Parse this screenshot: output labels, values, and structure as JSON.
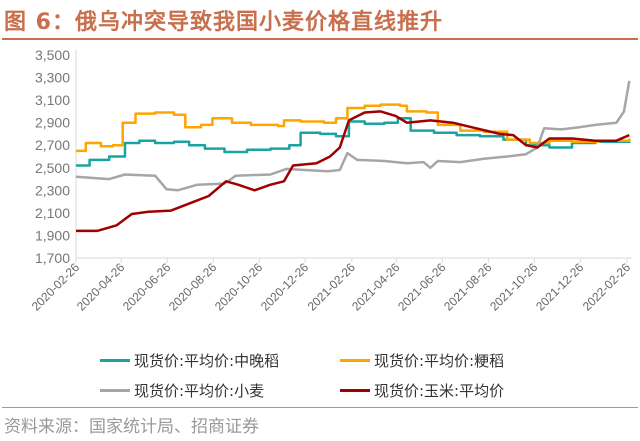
{
  "chart_data": {
    "type": "line",
    "title": "图 6：俄乌冲突导致我国小麦价格直线推升",
    "source": "资料来源：国家统计局、招商证券",
    "ylim": [
      1700,
      3500
    ],
    "yticks": [
      "1,700",
      "1,900",
      "2,100",
      "2,300",
      "2,500",
      "2,700",
      "2,900",
      "3,100",
      "3,300",
      "3,500"
    ],
    "xticks": [
      "2020-02-26",
      "2020-04-26",
      "2020-06-26",
      "2020-08-26",
      "2020-10-26",
      "2020-12-26",
      "2021-02-26",
      "2021-04-26",
      "2021-06-26",
      "2021-08-26",
      "2021-10-26",
      "2021-12-26",
      "2022-02-26"
    ],
    "xlim": [
      "2020-02-26",
      "2022-03-05"
    ],
    "grid": false,
    "legend_position": "bottom",
    "series": [
      {
        "name": "现货价:平均价:中晚稻",
        "color": "#1aa3a3",
        "points": [
          [
            "2020-02-26",
            2520
          ],
          [
            "2020-03-15",
            2570
          ],
          [
            "2020-04-10",
            2600
          ],
          [
            "2020-05-01",
            2720
          ],
          [
            "2020-05-20",
            2740
          ],
          [
            "2020-06-10",
            2720
          ],
          [
            "2020-07-05",
            2730
          ],
          [
            "2020-07-25",
            2700
          ],
          [
            "2020-08-15",
            2670
          ],
          [
            "2020-09-10",
            2640
          ],
          [
            "2020-10-10",
            2660
          ],
          [
            "2020-11-10",
            2670
          ],
          [
            "2020-12-05",
            2700
          ],
          [
            "2020-12-20",
            2810
          ],
          [
            "2021-01-15",
            2800
          ],
          [
            "2021-02-05",
            2780
          ],
          [
            "2021-02-22",
            2910
          ],
          [
            "2021-03-15",
            2890
          ],
          [
            "2021-04-10",
            2900
          ],
          [
            "2021-04-28",
            2940
          ],
          [
            "2021-05-15",
            2830
          ],
          [
            "2021-06-15",
            2810
          ],
          [
            "2021-07-15",
            2790
          ],
          [
            "2021-08-15",
            2780
          ],
          [
            "2021-09-15",
            2750
          ],
          [
            "2021-10-15",
            2700
          ],
          [
            "2021-11-15",
            2680
          ],
          [
            "2021-12-15",
            2720
          ],
          [
            "2022-01-15",
            2730
          ],
          [
            "2022-03-01",
            2720
          ]
        ]
      },
      {
        "name": "现货价:平均价:粳稻",
        "color": "#ffa500",
        "points": [
          [
            "2020-02-26",
            2650
          ],
          [
            "2020-03-10",
            2720
          ],
          [
            "2020-03-30",
            2690
          ],
          [
            "2020-04-15",
            2700
          ],
          [
            "2020-04-28",
            2900
          ],
          [
            "2020-05-15",
            2980
          ],
          [
            "2020-06-10",
            2990
          ],
          [
            "2020-07-05",
            2970
          ],
          [
            "2020-07-20",
            2860
          ],
          [
            "2020-08-10",
            2880
          ],
          [
            "2020-08-25",
            2940
          ],
          [
            "2020-09-20",
            2900
          ],
          [
            "2020-10-15",
            2880
          ],
          [
            "2020-11-20",
            2870
          ],
          [
            "2020-11-28",
            2920
          ],
          [
            "2020-12-20",
            2910
          ],
          [
            "2021-01-20",
            2900
          ],
          [
            "2021-02-05",
            2940
          ],
          [
            "2021-02-20",
            3030
          ],
          [
            "2021-03-15",
            3050
          ],
          [
            "2021-04-05",
            3060
          ],
          [
            "2021-05-01",
            3050
          ],
          [
            "2021-05-10",
            3000
          ],
          [
            "2021-06-05",
            2990
          ],
          [
            "2021-06-20",
            2880
          ],
          [
            "2021-07-20",
            2830
          ],
          [
            "2021-08-20",
            2820
          ],
          [
            "2021-09-20",
            2750
          ],
          [
            "2021-10-20",
            2720
          ],
          [
            "2021-11-15",
            2740
          ],
          [
            "2021-12-15",
            2730
          ],
          [
            "2022-01-20",
            2740
          ],
          [
            "2022-03-01",
            2760
          ]
        ]
      },
      {
        "name": "现货价:平均价:小麦",
        "color": "#a6a6a6",
        "points": [
          [
            "2020-02-26",
            2420
          ],
          [
            "2020-04-10",
            2400
          ],
          [
            "2020-05-01",
            2440
          ],
          [
            "2020-06-10",
            2430
          ],
          [
            "2020-06-25",
            2310
          ],
          [
            "2020-07-10",
            2300
          ],
          [
            "2020-08-05",
            2350
          ],
          [
            "2020-09-10",
            2360
          ],
          [
            "2020-09-25",
            2430
          ],
          [
            "2020-11-10",
            2440
          ],
          [
            "2020-12-01",
            2490
          ],
          [
            "2020-12-25",
            2480
          ],
          [
            "2021-01-25",
            2470
          ],
          [
            "2021-02-10",
            2480
          ],
          [
            "2021-02-20",
            2630
          ],
          [
            "2021-03-05",
            2570
          ],
          [
            "2021-04-10",
            2560
          ],
          [
            "2021-05-10",
            2540
          ],
          [
            "2021-06-01",
            2550
          ],
          [
            "2021-06-10",
            2500
          ],
          [
            "2021-06-20",
            2560
          ],
          [
            "2021-07-20",
            2550
          ],
          [
            "2021-08-20",
            2580
          ],
          [
            "2021-09-20",
            2600
          ],
          [
            "2021-10-15",
            2620
          ],
          [
            "2021-10-30",
            2680
          ],
          [
            "2021-11-08",
            2850
          ],
          [
            "2021-12-01",
            2840
          ],
          [
            "2021-12-25",
            2860
          ],
          [
            "2022-01-15",
            2880
          ],
          [
            "2022-02-12",
            2900
          ],
          [
            "2022-02-22",
            3000
          ],
          [
            "2022-03-01",
            3270
          ]
        ]
      },
      {
        "name": "现货价:玉米:平均价",
        "color": "#a00000",
        "points": [
          [
            "2020-02-26",
            1940
          ],
          [
            "2020-03-25",
            1940
          ],
          [
            "2020-04-20",
            1990
          ],
          [
            "2020-05-10",
            2090
          ],
          [
            "2020-06-01",
            2110
          ],
          [
            "2020-07-01",
            2120
          ],
          [
            "2020-08-01",
            2200
          ],
          [
            "2020-08-20",
            2250
          ],
          [
            "2020-09-12",
            2380
          ],
          [
            "2020-09-28",
            2350
          ],
          [
            "2020-10-20",
            2300
          ],
          [
            "2020-11-10",
            2350
          ],
          [
            "2020-11-28",
            2380
          ],
          [
            "2020-12-10",
            2520
          ],
          [
            "2021-01-10",
            2540
          ],
          [
            "2021-01-28",
            2600
          ],
          [
            "2021-02-10",
            2680
          ],
          [
            "2021-02-22",
            2920
          ],
          [
            "2021-03-15",
            2990
          ],
          [
            "2021-04-05",
            3000
          ],
          [
            "2021-04-25",
            2960
          ],
          [
            "2021-05-10",
            2900
          ],
          [
            "2021-06-10",
            2920
          ],
          [
            "2021-07-10",
            2900
          ],
          [
            "2021-08-10",
            2850
          ],
          [
            "2021-09-10",
            2800
          ],
          [
            "2021-09-28",
            2790
          ],
          [
            "2021-10-15",
            2700
          ],
          [
            "2021-10-30",
            2680
          ],
          [
            "2021-11-15",
            2760
          ],
          [
            "2021-12-15",
            2760
          ],
          [
            "2022-01-15",
            2740
          ],
          [
            "2022-02-12",
            2740
          ],
          [
            "2022-03-01",
            2790
          ]
        ]
      }
    ]
  }
}
